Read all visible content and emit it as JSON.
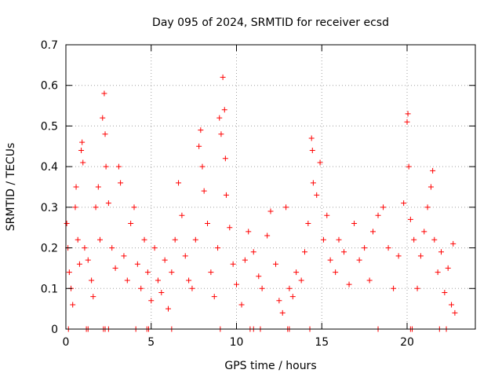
{
  "chart_data": {
    "type": "scatter",
    "title": "Day 095 of 2024, SRMTID for receiver ecsd",
    "xlabel": "GPS time / hours",
    "ylabel": "SRMTID / TECUs",
    "xlim": [
      0,
      24
    ],
    "ylim": [
      0,
      0.7
    ],
    "xticks": [
      0,
      5,
      10,
      15,
      20
    ],
    "yticks": [
      0,
      0.1,
      0.2,
      0.3,
      0.4,
      0.5,
      0.6,
      0.7
    ],
    "grid": true,
    "marker": "+",
    "color": "#ff0000",
    "series": [
      {
        "name": "SRMTID",
        "points": [
          [
            0.05,
            0.26
          ],
          [
            0.12,
            0.2
          ],
          [
            0.2,
            0.14
          ],
          [
            0.3,
            0.1
          ],
          [
            0.4,
            0.06
          ],
          [
            0.55,
            0.3
          ],
          [
            0.6,
            0.35
          ],
          [
            0.7,
            0.22
          ],
          [
            0.8,
            0.16
          ],
          [
            0.9,
            0.44
          ],
          [
            0.95,
            0.46
          ],
          [
            1.0,
            0.41
          ],
          [
            1.1,
            0.2
          ],
          [
            1.3,
            0.17
          ],
          [
            1.5,
            0.12
          ],
          [
            1.6,
            0.08
          ],
          [
            1.75,
            0.3
          ],
          [
            1.9,
            0.35
          ],
          [
            2.0,
            0.22
          ],
          [
            2.15,
            0.52
          ],
          [
            2.25,
            0.58
          ],
          [
            2.3,
            0.48
          ],
          [
            2.35,
            0.4
          ],
          [
            2.5,
            0.31
          ],
          [
            2.7,
            0.2
          ],
          [
            2.9,
            0.15
          ],
          [
            3.1,
            0.4
          ],
          [
            3.2,
            0.36
          ],
          [
            3.4,
            0.18
          ],
          [
            3.6,
            0.12
          ],
          [
            3.8,
            0.26
          ],
          [
            4.0,
            0.3
          ],
          [
            4.2,
            0.16
          ],
          [
            4.4,
            0.1
          ],
          [
            4.6,
            0.22
          ],
          [
            4.8,
            0.14
          ],
          [
            5.0,
            0.07
          ],
          [
            5.2,
            0.2
          ],
          [
            5.4,
            0.12
          ],
          [
            5.6,
            0.09
          ],
          [
            5.8,
            0.17
          ],
          [
            6.0,
            0.05
          ],
          [
            6.2,
            0.14
          ],
          [
            6.4,
            0.22
          ],
          [
            6.6,
            0.36
          ],
          [
            6.8,
            0.28
          ],
          [
            7.0,
            0.18
          ],
          [
            7.2,
            0.12
          ],
          [
            7.4,
            0.1
          ],
          [
            7.6,
            0.22
          ],
          [
            7.8,
            0.45
          ],
          [
            7.9,
            0.49
          ],
          [
            8.0,
            0.4
          ],
          [
            8.1,
            0.34
          ],
          [
            8.3,
            0.26
          ],
          [
            8.5,
            0.14
          ],
          [
            8.7,
            0.08
          ],
          [
            8.9,
            0.2
          ],
          [
            9.0,
            0.52
          ],
          [
            9.1,
            0.48
          ],
          [
            9.2,
            0.62
          ],
          [
            9.3,
            0.54
          ],
          [
            9.35,
            0.42
          ],
          [
            9.4,
            0.33
          ],
          [
            9.6,
            0.25
          ],
          [
            9.8,
            0.16
          ],
          [
            10.0,
            0.11
          ],
          [
            10.3,
            0.06
          ],
          [
            10.5,
            0.17
          ],
          [
            10.7,
            0.24
          ],
          [
            11.0,
            0.19
          ],
          [
            11.3,
            0.13
          ],
          [
            11.5,
            0.1
          ],
          [
            11.8,
            0.23
          ],
          [
            12.0,
            0.29
          ],
          [
            12.3,
            0.16
          ],
          [
            12.5,
            0.07
          ],
          [
            12.7,
            0.04
          ],
          [
            12.9,
            0.3
          ],
          [
            13.1,
            0.1
          ],
          [
            13.3,
            0.08
          ],
          [
            13.5,
            0.14
          ],
          [
            13.8,
            0.12
          ],
          [
            14.0,
            0.19
          ],
          [
            14.2,
            0.26
          ],
          [
            14.4,
            0.47
          ],
          [
            14.45,
            0.44
          ],
          [
            14.5,
            0.36
          ],
          [
            14.7,
            0.33
          ],
          [
            14.9,
            0.41
          ],
          [
            15.1,
            0.22
          ],
          [
            15.3,
            0.28
          ],
          [
            15.5,
            0.17
          ],
          [
            15.8,
            0.14
          ],
          [
            16.0,
            0.22
          ],
          [
            16.3,
            0.19
          ],
          [
            16.6,
            0.11
          ],
          [
            16.9,
            0.26
          ],
          [
            17.2,
            0.17
          ],
          [
            17.5,
            0.2
          ],
          [
            17.8,
            0.12
          ],
          [
            18.0,
            0.24
          ],
          [
            18.3,
            0.28
          ],
          [
            18.6,
            0.3
          ],
          [
            18.9,
            0.2
          ],
          [
            19.2,
            0.1
          ],
          [
            19.5,
            0.18
          ],
          [
            19.8,
            0.31
          ],
          [
            20.0,
            0.51
          ],
          [
            20.05,
            0.53
          ],
          [
            20.1,
            0.4
          ],
          [
            20.2,
            0.27
          ],
          [
            20.4,
            0.22
          ],
          [
            20.6,
            0.1
          ],
          [
            20.8,
            0.18
          ],
          [
            21.0,
            0.24
          ],
          [
            21.2,
            0.3
          ],
          [
            21.4,
            0.35
          ],
          [
            21.5,
            0.39
          ],
          [
            21.6,
            0.22
          ],
          [
            21.8,
            0.14
          ],
          [
            22.0,
            0.19
          ],
          [
            22.2,
            0.09
          ],
          [
            22.4,
            0.15
          ],
          [
            22.6,
            0.06
          ],
          [
            22.7,
            0.21
          ],
          [
            22.8,
            0.04
          ]
        ]
      }
    ],
    "baseline_points": [
      [
        0.15,
        0
      ],
      [
        1.2,
        0
      ],
      [
        1.3,
        0
      ],
      [
        2.2,
        0
      ],
      [
        2.3,
        0
      ],
      [
        2.5,
        0
      ],
      [
        4.1,
        0
      ],
      [
        4.75,
        0
      ],
      [
        4.85,
        0
      ],
      [
        6.2,
        0
      ],
      [
        9.05,
        0
      ],
      [
        10.8,
        0
      ],
      [
        11.0,
        0
      ],
      [
        11.4,
        0
      ],
      [
        13.0,
        0
      ],
      [
        13.1,
        0
      ],
      [
        14.3,
        0
      ],
      [
        18.3,
        0
      ],
      [
        20.2,
        0
      ],
      [
        20.3,
        0
      ],
      [
        21.9,
        0
      ],
      [
        22.3,
        0
      ]
    ]
  }
}
